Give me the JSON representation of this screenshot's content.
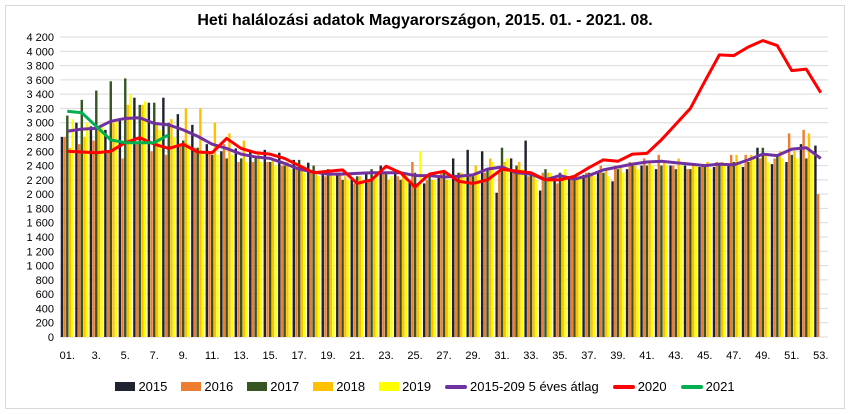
{
  "chart_data": {
    "type": "bar+line",
    "title": "Heti halálozási adatok Magyarországon, 2015. 01. - 2021. 08.",
    "ylim": [
      0,
      4200
    ],
    "yticks": [
      "0",
      "200",
      "400",
      "600",
      "800",
      "1 000",
      "1 200",
      "1 400",
      "1 600",
      "1 800",
      "2 000",
      "2 200",
      "2 400",
      "2 600",
      "2 800",
      "3 000",
      "3 200",
      "3 400",
      "3 600",
      "3 800",
      "4 000",
      "4 200"
    ],
    "xticks": [
      "01.",
      "3.",
      "5.",
      "7.",
      "9.",
      "11.",
      "13.",
      "15.",
      "17.",
      "19.",
      "21.",
      "23.",
      "25.",
      "27.",
      "29.",
      "31.",
      "33.",
      "35.",
      "37.",
      "39.",
      "41.",
      "43.",
      "45.",
      "47.",
      "49.",
      "51.",
      "53."
    ],
    "grid": true,
    "legend_position": "bottom",
    "bar_series": [
      {
        "name": "2015",
        "color": "#1f2330",
        "values": [
          2800,
          3000,
          2950,
          2900,
          3050,
          3350,
          3280,
          3350,
          3120,
          2970,
          2700,
          2600,
          2640,
          2620,
          2620,
          2580,
          2480,
          2440,
          2300,
          2300,
          2200,
          2300,
          2400,
          2300,
          2160,
          2150,
          2250,
          2500,
          2620,
          2600,
          2020,
          2500,
          2750,
          2050,
          2200,
          2250,
          2270,
          2300,
          2180,
          2350,
          2400,
          2350,
          2400,
          2400,
          2380,
          2380,
          2400,
          2380,
          2650,
          2420,
          2450,
          2700,
          2680
        ]
      },
      {
        "name": "2016",
        "color": "#ed7d31",
        "values": [
          2800,
          2700,
          2750,
          2600,
          2500,
          2700,
          2600,
          2550,
          2700,
          2650,
          2600,
          2700,
          2450,
          2450,
          2450,
          2400,
          2350,
          2300,
          2250,
          2300,
          2150,
          2200,
          2300,
          2250,
          2450,
          2200,
          2300,
          2200,
          2250,
          2300,
          2300,
          2350,
          2250,
          2300,
          2150,
          2250,
          2300,
          2400,
          2400,
          2450,
          2500,
          2550,
          2400,
          2350,
          2400,
          2450,
          2550,
          2550,
          2500,
          2500,
          2850,
          2900,
          2000
        ]
      },
      {
        "name": "2017",
        "color": "#375623",
        "values": [
          3100,
          3320,
          3450,
          3580,
          3620,
          3250,
          3280,
          3000,
          2750,
          2650,
          2550,
          2500,
          2500,
          2500,
          2450,
          2400,
          2480,
          2400,
          2350,
          2200,
          2250,
          2350,
          2300,
          2200,
          2300,
          2250,
          2300,
          2300,
          2250,
          2350,
          2650,
          2400,
          2300,
          2350,
          2300,
          2250,
          2300,
          2300,
          2350,
          2400,
          2400,
          2400,
          2350,
          2350,
          2400,
          2400,
          2450,
          2450,
          2650,
          2550,
          2550,
          2500,
          0
        ]
      },
      {
        "name": "2018",
        "color": "#ffc000",
        "values": [
          2650,
          2800,
          2950,
          3000,
          3250,
          3250,
          3000,
          3050,
          3200,
          3200,
          3000,
          2850,
          2750,
          2600,
          2500,
          2450,
          2400,
          2300,
          2300,
          2250,
          2250,
          2200,
          2200,
          2300,
          2150,
          2200,
          2200,
          2300,
          2400,
          2500,
          2450,
          2450,
          2250,
          2300,
          2250,
          2300,
          2300,
          2350,
          2400,
          2400,
          2450,
          2450,
          2500,
          2400,
          2450,
          2450,
          2550,
          2550,
          2550,
          2600,
          2600,
          2850,
          0
        ]
      },
      {
        "name": "2019",
        "color": "#ffff00",
        "values": [
          3050,
          3000,
          2950,
          3050,
          3400,
          3300,
          2900,
          2800,
          2700,
          2600,
          2550,
          2550,
          2450,
          2450,
          2400,
          2350,
          2300,
          2250,
          2250,
          2200,
          2200,
          2250,
          2250,
          2300,
          2600,
          2200,
          2200,
          2250,
          2300,
          2450,
          2500,
          2350,
          2200,
          2300,
          2350,
          2250,
          2250,
          2250,
          2300,
          2350,
          2400,
          2400,
          2400,
          2400,
          2350,
          2400,
          2450,
          2500,
          2450,
          2500,
          2500,
          2550,
          0
        ]
      }
    ],
    "line_series": [
      {
        "name": "2015-209 5 éves átlag",
        "color": "#7030a0",
        "values": [
          2880,
          2910,
          2920,
          3020,
          3060,
          3070,
          2990,
          2970,
          2900,
          2810,
          2700,
          2640,
          2560,
          2520,
          2500,
          2430,
          2350,
          2310,
          2280,
          2280,
          2290,
          2300,
          2300,
          2300,
          2260,
          2260,
          2240,
          2250,
          2270,
          2350,
          2380,
          2300,
          2280,
          2200,
          2260,
          2210,
          2260,
          2340,
          2380,
          2420,
          2450,
          2460,
          2440,
          2420,
          2400,
          2420,
          2410,
          2480,
          2560,
          2540,
          2630,
          2650,
          2500
        ]
      },
      {
        "name": "2020",
        "color": "#ff0000",
        "values": [
          2600,
          2590,
          2580,
          2600,
          2720,
          2790,
          2700,
          2640,
          2700,
          2590,
          2580,
          2780,
          2640,
          2580,
          2560,
          2500,
          2400,
          2300,
          2320,
          2340,
          2150,
          2200,
          2390,
          2300,
          2100,
          2280,
          2320,
          2180,
          2150,
          2200,
          2350,
          2320,
          2300,
          2200,
          2200,
          2250,
          2370,
          2480,
          2460,
          2560,
          2570,
          2760,
          2980,
          3200,
          3580,
          3950,
          3940,
          4060,
          4150,
          4080,
          3730,
          3750,
          3420
        ]
      },
      {
        "name": "2021",
        "color": "#00b050",
        "values": [
          3160,
          3140,
          2950,
          2760,
          2720,
          2720,
          2720,
          2830
        ]
      }
    ]
  }
}
